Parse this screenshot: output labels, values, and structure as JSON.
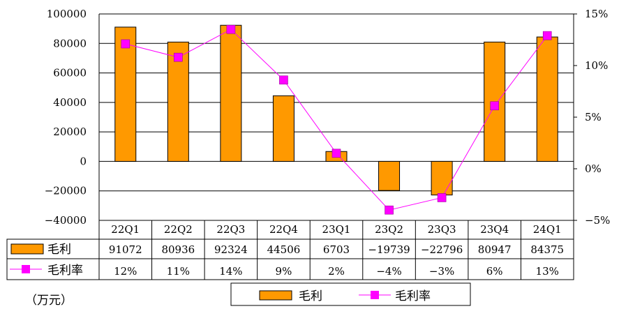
{
  "chart_data": {
    "type": "bar",
    "categories": [
      "22Q1",
      "22Q2",
      "22Q3",
      "22Q4",
      "23Q1",
      "23Q2",
      "23Q3",
      "23Q4",
      "24Q1"
    ],
    "series": [
      {
        "name": "毛利",
        "type": "bar",
        "axis": "left",
        "values": [
          91072,
          80936,
          92324,
          44506,
          6703,
          -19739,
          -22796,
          80947,
          84375
        ],
        "labels": [
          "91072",
          "80936",
          "92324",
          "44506",
          "6703",
          "-19739",
          "-22796",
          "80947",
          "84375"
        ],
        "color": "#FF9900"
      },
      {
        "name": "毛利率",
        "type": "line",
        "axis": "right",
        "values": [
          12.1,
          10.8,
          13.5,
          8.6,
          1.5,
          -4.0,
          -2.8,
          6.1,
          12.9
        ],
        "labels": [
          "12%",
          "11%",
          "14%",
          "9%",
          "2%",
          "-4%",
          "-3%",
          "6%",
          "13%"
        ],
        "color": "#FF00FF"
      }
    ],
    "ylim_left": [
      -40000,
      100000
    ],
    "yticks_left": [
      "100000",
      "80000",
      "60000",
      "40000",
      "20000",
      "0",
      "-20000",
      "-40000"
    ],
    "ylim_right": [
      -5,
      15
    ],
    "yticks_right": [
      "15%",
      "10%",
      "5%",
      "0%",
      "-5%"
    ],
    "unit_label": "（万元）",
    "grid": true,
    "legend_position": "bottom"
  }
}
